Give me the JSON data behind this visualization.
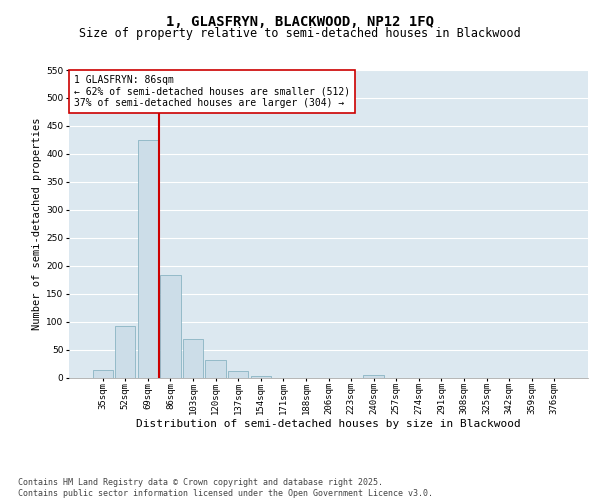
{
  "title": "1, GLASFRYN, BLACKWOOD, NP12 1FQ",
  "subtitle": "Size of property relative to semi-detached houses in Blackwood",
  "xlabel": "Distribution of semi-detached houses by size in Blackwood",
  "ylabel": "Number of semi-detached properties",
  "categories": [
    "35sqm",
    "52sqm",
    "69sqm",
    "86sqm",
    "103sqm",
    "120sqm",
    "137sqm",
    "154sqm",
    "171sqm",
    "188sqm",
    "206sqm",
    "223sqm",
    "240sqm",
    "257sqm",
    "274sqm",
    "291sqm",
    "308sqm",
    "325sqm",
    "342sqm",
    "359sqm",
    "376sqm"
  ],
  "values": [
    14,
    93,
    425,
    183,
    69,
    31,
    12,
    2,
    0,
    0,
    0,
    0,
    4,
    0,
    0,
    0,
    0,
    0,
    0,
    0,
    0
  ],
  "bar_color": "#ccdde8",
  "bar_edge_color": "#7aaabb",
  "vline_color": "#cc0000",
  "annotation_text": "1 GLASFRYN: 86sqm\n← 62% of semi-detached houses are smaller (512)\n37% of semi-detached houses are larger (304) →",
  "annotation_box_facecolor": "#ffffff",
  "annotation_box_edgecolor": "#cc0000",
  "ylim": [
    0,
    550
  ],
  "yticks": [
    0,
    50,
    100,
    150,
    200,
    250,
    300,
    350,
    400,
    450,
    500,
    550
  ],
  "background_color": "#dce8f0",
  "grid_color": "#ffffff",
  "footer_text": "Contains HM Land Registry data © Crown copyright and database right 2025.\nContains public sector information licensed under the Open Government Licence v3.0.",
  "title_fontsize": 10,
  "subtitle_fontsize": 8.5,
  "xlabel_fontsize": 8,
  "ylabel_fontsize": 7.5,
  "tick_fontsize": 6.5,
  "annotation_fontsize": 7,
  "footer_fontsize": 6
}
